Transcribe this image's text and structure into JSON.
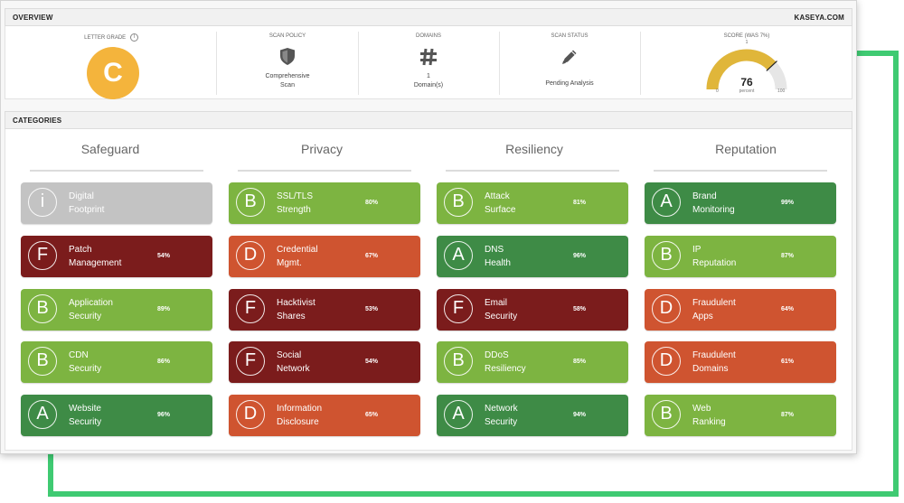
{
  "header": {
    "title": "OVERVIEW",
    "brand": "KASEYA.COM"
  },
  "overview": {
    "letter_grade": {
      "label": "LETTER GRADE",
      "value": "C",
      "info": "i",
      "color": "#f4b43c"
    },
    "scan_policy": {
      "label": "SCAN POLICY",
      "icon": "shield-icon",
      "value_line1": "Comprehensive",
      "value_line2": "Scan"
    },
    "domains": {
      "label": "DOMAINS",
      "icon": "hash-icon",
      "count": "1",
      "unit": "Domain(s)"
    },
    "scan_status": {
      "label": "SCAN STATUS",
      "icon": "pencil-icon",
      "value": "Pending Analysis"
    },
    "score": {
      "label": "SCORE (WAS 7%)",
      "value": 76,
      "sub": "percent",
      "min": "0",
      "max": "100",
      "prev_marker": "1",
      "color": "#e0b63a"
    }
  },
  "categories_header": {
    "title": "CATEGORIES"
  },
  "colors": {
    "A": "#3e8b46",
    "B": "#7db441",
    "D": "#cf5430",
    "F": "#7b1c1c",
    "info": "#c3c3c3"
  },
  "columns": [
    {
      "title": "Safeguard",
      "items": [
        {
          "grade": "i",
          "line1": "Digital",
          "line2": "Footprint",
          "percent": ""
        },
        {
          "grade": "F",
          "line1": "Patch",
          "line2": "Management",
          "percent": "54%"
        },
        {
          "grade": "B",
          "line1": "Application",
          "line2": "Security",
          "percent": "89%"
        },
        {
          "grade": "B",
          "line1": "CDN",
          "line2": "Security",
          "percent": "86%"
        },
        {
          "grade": "A",
          "line1": "Website",
          "line2": "Security",
          "percent": "96%"
        }
      ]
    },
    {
      "title": "Privacy",
      "items": [
        {
          "grade": "B",
          "line1": "SSL/TLS",
          "line2": "Strength",
          "percent": "80%"
        },
        {
          "grade": "D",
          "line1": "Credential",
          "line2": "Mgmt.",
          "percent": "67%"
        },
        {
          "grade": "F",
          "line1": "Hacktivist",
          "line2": "Shares",
          "percent": "53%"
        },
        {
          "grade": "F",
          "line1": "Social",
          "line2": "Network",
          "percent": "54%"
        },
        {
          "grade": "D",
          "line1": "Information",
          "line2": "Disclosure",
          "percent": "65%"
        }
      ]
    },
    {
      "title": "Resiliency",
      "items": [
        {
          "grade": "B",
          "line1": "Attack",
          "line2": "Surface",
          "percent": "81%"
        },
        {
          "grade": "A",
          "line1": "DNS",
          "line2": "Health",
          "percent": "96%"
        },
        {
          "grade": "F",
          "line1": "Email",
          "line2": "Security",
          "percent": "58%"
        },
        {
          "grade": "B",
          "line1": "DDoS",
          "line2": "Resiliency",
          "percent": "85%"
        },
        {
          "grade": "A",
          "line1": "Network",
          "line2": "Security",
          "percent": "94%"
        }
      ]
    },
    {
      "title": "Reputation",
      "items": [
        {
          "grade": "A",
          "line1": "Brand",
          "line2": "Monitoring",
          "percent": "99%"
        },
        {
          "grade": "B",
          "line1": "IP",
          "line2": "Reputation",
          "percent": "87%"
        },
        {
          "grade": "D",
          "line1": "Fraudulent",
          "line2": "Apps",
          "percent": "64%"
        },
        {
          "grade": "D",
          "line1": "Fraudulent",
          "line2": "Domains",
          "percent": "61%"
        },
        {
          "grade": "B",
          "line1": "Web",
          "line2": "Ranking",
          "percent": "87%"
        }
      ]
    }
  ]
}
